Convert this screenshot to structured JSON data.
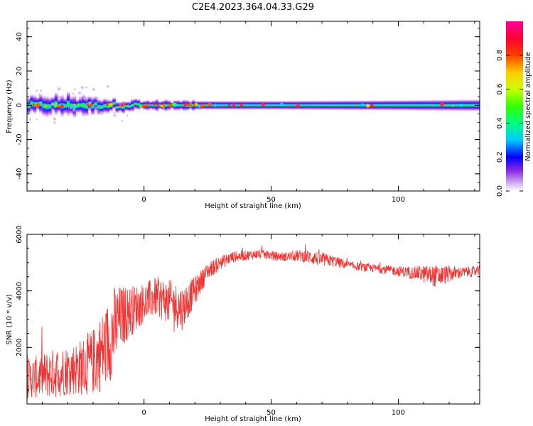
{
  "title": "C2E4.2023.364.04.33.G29",
  "chart_data": [
    {
      "type": "heatmap",
      "xlabel": "Height of straight line (km)",
      "ylabel": "Frequency (Hz)",
      "xlim": [
        -46,
        132
      ],
      "ylim": [
        -50,
        49
      ],
      "xticks": [
        "0",
        "50",
        "100"
      ],
      "xtick_values": [
        0,
        50,
        100
      ],
      "yticks": [
        "40",
        "20",
        "0",
        "-20",
        "-40"
      ],
      "ytick_values": [
        40,
        20,
        0,
        -20,
        -40
      ],
      "band_center_hz": 0,
      "band_halfwidth_hz": [
        {
          "x": -46,
          "hz": 5
        },
        {
          "x": -30,
          "hz": 6
        },
        {
          "x": -15,
          "hz": 4
        },
        {
          "x": 0,
          "hz": 3
        },
        {
          "x": 50,
          "hz": 3
        },
        {
          "x": 100,
          "hz": 3.5
        },
        {
          "x": 132,
          "hz": 4
        }
      ],
      "colorbar": {
        "label": "Normalized spectral amplitude",
        "ticks": [
          "0.0",
          "0.2",
          "0.4",
          "0.6",
          "0.8"
        ],
        "tick_values": [
          0.0,
          0.2,
          0.4,
          0.6,
          0.8
        ],
        "range": [
          0,
          1
        ],
        "colormap": "gist_ncar-like (white, purple, blue, cyan, green, yellow, red, magenta)"
      },
      "grid": false
    },
    {
      "type": "line",
      "xlabel": "Height of straight line (km)",
      "ylabel": "SNR (10 * v/v)",
      "xlim": [
        -46,
        132
      ],
      "ylim": [
        0,
        6000
      ],
      "xticks": [
        "0",
        "50",
        "100"
      ],
      "xtick_values": [
        0,
        50,
        100
      ],
      "yticks": [
        "6000",
        "4000",
        "2000"
      ],
      "ytick_values": [
        6000,
        4000,
        2000
      ],
      "series": [
        {
          "color": "#ee3333",
          "x": [
            -46,
            -40,
            -35,
            -30,
            -25,
            -20,
            -15,
            -12,
            -10,
            -5,
            0,
            5,
            10,
            15,
            20,
            25,
            30,
            35,
            40,
            45,
            50,
            55,
            60,
            65,
            70,
            75,
            80,
            85,
            90,
            95,
            100,
            105,
            110,
            115,
            120,
            125,
            132
          ],
          "y": [
            900,
            1000,
            1100,
            1200,
            1300,
            1500,
            2000,
            2600,
            3000,
            3300,
            3600,
            3800,
            3600,
            3400,
            4000,
            4700,
            5000,
            5200,
            5250,
            5300,
            5250,
            5200,
            5250,
            5200,
            5100,
            5050,
            4900,
            4850,
            4800,
            4750,
            4700,
            4650,
            4600,
            4500,
            4600,
            4650,
            4700
          ],
          "noise_amplitude": [
            700,
            800,
            900,
            900,
            1000,
            1200,
            1500,
            1600,
            1200,
            900,
            700,
            700,
            800,
            800,
            500,
            300,
            250,
            200,
            180,
            160,
            160,
            160,
            200,
            250,
            250,
            200,
            160,
            150,
            150,
            160,
            180,
            220,
            300,
            400,
            300,
            200,
            180
          ]
        }
      ],
      "grid": false
    }
  ]
}
